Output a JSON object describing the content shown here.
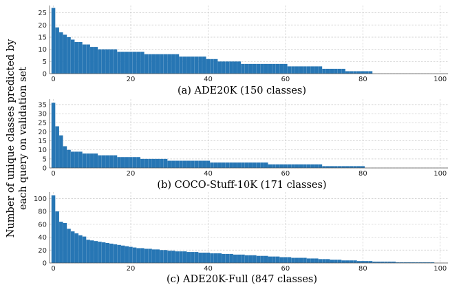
{
  "ylabel": "Number of unique classes predicted by each query on validation set",
  "colors": {
    "bar": "#2776b4"
  },
  "chart_data": [
    {
      "type": "bar",
      "caption": "(a) ADE20K (150 classes)",
      "ylim": [
        0,
        28
      ],
      "yticks": [
        0,
        5,
        10,
        15,
        20,
        25
      ],
      "xlim": [
        -1,
        102
      ],
      "xticks": [
        0,
        20,
        40,
        60,
        80,
        100
      ],
      "grid": true,
      "values": [
        27,
        19,
        17,
        16,
        15,
        14,
        13,
        13,
        12,
        12,
        11,
        11,
        10,
        10,
        10,
        10,
        10,
        9,
        9,
        9,
        9,
        9,
        9,
        9,
        8,
        8,
        8,
        8,
        8,
        8,
        8,
        8,
        8,
        7,
        7,
        7,
        7,
        7,
        7,
        7,
        6,
        6,
        6,
        5,
        5,
        5,
        5,
        5,
        5,
        4,
        4,
        4,
        4,
        4,
        4,
        4,
        4,
        4,
        4,
        4,
        4,
        3,
        3,
        3,
        3,
        3,
        3,
        3,
        3,
        3,
        2,
        2,
        2,
        2,
        2,
        2,
        1,
        1,
        1,
        1,
        1,
        1,
        1,
        0,
        0,
        0,
        0,
        0,
        0,
        0,
        0,
        0,
        0,
        0,
        0,
        0,
        0,
        0,
        0,
        0
      ]
    },
    {
      "type": "bar",
      "caption": "(b) COCO-Stuff-10K (171 classes)",
      "ylim": [
        0,
        38
      ],
      "yticks": [
        0,
        5,
        10,
        15,
        20,
        25,
        30,
        35
      ],
      "xlim": [
        -1,
        102
      ],
      "xticks": [
        0,
        20,
        40,
        60,
        80,
        100
      ],
      "grid": true,
      "values": [
        36,
        23,
        18,
        12,
        10,
        9,
        9,
        9,
        8,
        8,
        8,
        8,
        7,
        7,
        7,
        7,
        7,
        6,
        6,
        6,
        6,
        6,
        6,
        5,
        5,
        5,
        5,
        5,
        5,
        5,
        4,
        4,
        4,
        4,
        4,
        4,
        4,
        4,
        4,
        4,
        4,
        3,
        3,
        3,
        3,
        3,
        3,
        3,
        3,
        3,
        3,
        3,
        3,
        3,
        3,
        3,
        2,
        2,
        2,
        2,
        2,
        2,
        2,
        2,
        2,
        2,
        2,
        2,
        2,
        2,
        1,
        1,
        1,
        1,
        1,
        1,
        1,
        1,
        1,
        1,
        1,
        0,
        0,
        0,
        0,
        0,
        0,
        0,
        0,
        0,
        0,
        0,
        0,
        0,
        0,
        0,
        0,
        0,
        0,
        0
      ]
    },
    {
      "type": "bar",
      "caption": "(c) ADE20K-Full (847 classes)",
      "ylim": [
        0,
        110
      ],
      "yticks": [
        0,
        20,
        40,
        60,
        80,
        100
      ],
      "xlim": [
        -1,
        102
      ],
      "xticks": [
        0,
        20,
        40,
        60,
        80,
        100
      ],
      "grid": true,
      "values": [
        105,
        80,
        64,
        62,
        53,
        49,
        46,
        43,
        41,
        36,
        35,
        34,
        33,
        32,
        31,
        30,
        29,
        28,
        27,
        26,
        25,
        24,
        23,
        23,
        22,
        22,
        21,
        21,
        20,
        20,
        19,
        19,
        18,
        18,
        18,
        17,
        17,
        17,
        16,
        16,
        16,
        15,
        15,
        15,
        14,
        14,
        14,
        13,
        13,
        13,
        12,
        12,
        12,
        11,
        11,
        11,
        10,
        10,
        10,
        9,
        9,
        9,
        8,
        8,
        8,
        8,
        7,
        7,
        7,
        6,
        6,
        6,
        5,
        5,
        5,
        4,
        4,
        4,
        4,
        3,
        3,
        3,
        3,
        2,
        2,
        2,
        2,
        2,
        2,
        1,
        1,
        1,
        1,
        1,
        1,
        1,
        1,
        1,
        1,
        0
      ]
    }
  ]
}
